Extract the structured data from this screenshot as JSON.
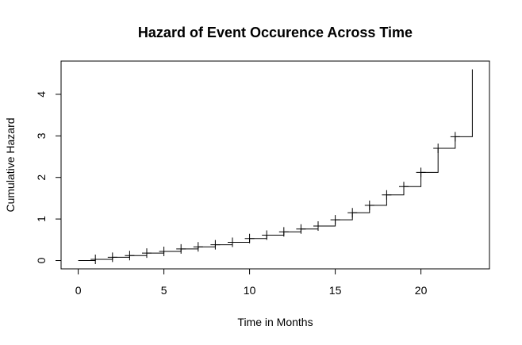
{
  "chart_data": {
    "type": "line",
    "style": "step",
    "title": "Hazard of Event Occurence Across Time",
    "xlabel": "Time in Months",
    "ylabel": "Cumulative Hazard",
    "xlim": [
      -1,
      24
    ],
    "ylim": [
      -0.2,
      4.8
    ],
    "xticks": [
      0,
      5,
      10,
      15,
      20
    ],
    "yticks": [
      0,
      1,
      2,
      3,
      4
    ],
    "grid": false,
    "series": [
      {
        "x": [
          0,
          1,
          2,
          3,
          4,
          5,
          6,
          7,
          8,
          9,
          10,
          11,
          12,
          13,
          14,
          15,
          16,
          17,
          18,
          19,
          20,
          21,
          22,
          23
        ],
        "y": [
          0,
          0.03,
          0.08,
          0.12,
          0.18,
          0.22,
          0.28,
          0.33,
          0.38,
          0.44,
          0.53,
          0.61,
          0.69,
          0.76,
          0.83,
          0.98,
          1.15,
          1.33,
          1.58,
          1.78,
          2.12,
          2.7,
          2.98,
          4.6
        ]
      }
    ],
    "censor_marks": {
      "x": [
        1,
        2,
        3,
        4,
        5,
        6,
        7,
        8,
        9,
        10,
        11,
        12,
        13,
        14,
        15,
        16,
        17,
        18,
        19,
        20,
        21,
        22
      ],
      "y": [
        0.03,
        0.08,
        0.12,
        0.18,
        0.22,
        0.28,
        0.33,
        0.38,
        0.44,
        0.53,
        0.61,
        0.69,
        0.76,
        0.83,
        0.98,
        1.15,
        1.33,
        1.58,
        1.78,
        2.12,
        2.7,
        2.98
      ]
    }
  }
}
